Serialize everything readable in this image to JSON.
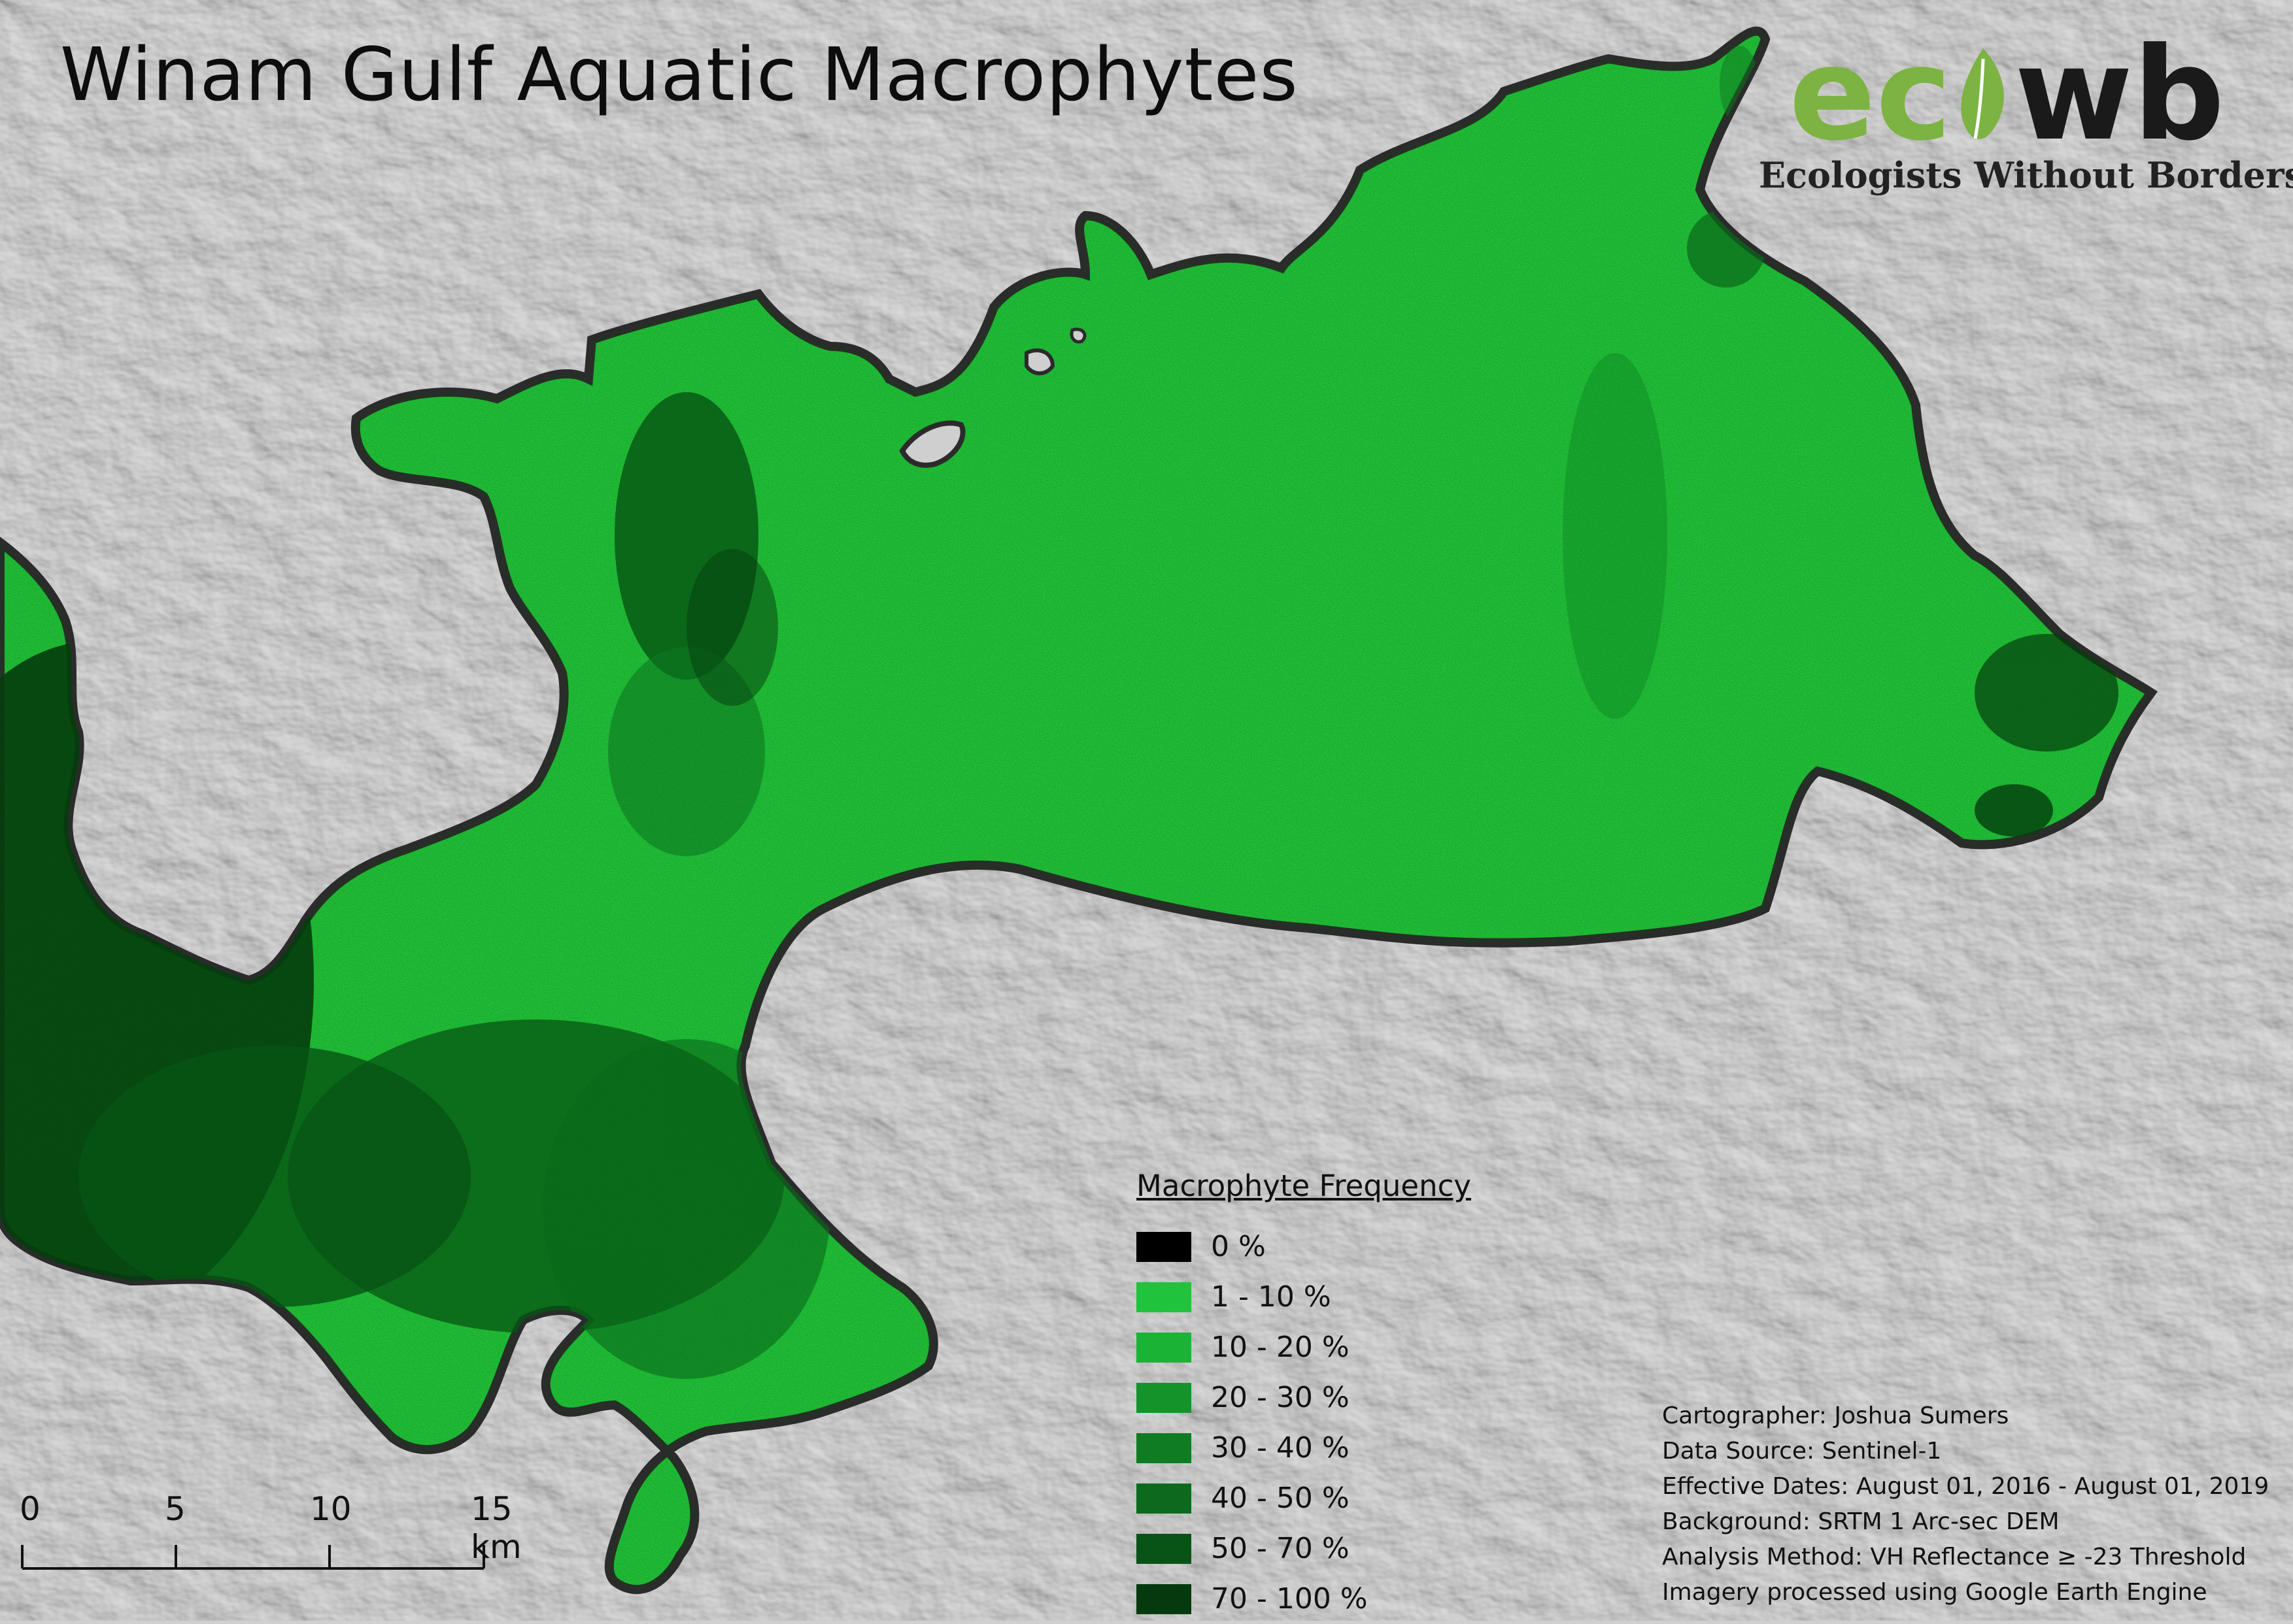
{
  "map": {
    "title": "Winam Gulf Aquatic Macrophytes",
    "background": "SRTM hillshade",
    "water_color": "#22c13a",
    "shore_color": "#2b2b2b"
  },
  "logo": {
    "word_left": "ec",
    "word_right": "wb",
    "tagline": "Ecologists Without Borders",
    "eco_color": "#7cb342",
    "leaf_color": "#7cb342"
  },
  "legend": {
    "title": "Macrophyte Frequency",
    "classes": [
      {
        "label": "0 %",
        "color": "#000000"
      },
      {
        "label": "1 - 10 %",
        "color": "#21c33c"
      },
      {
        "label": "10 - 20 %",
        "color": "#1bb335"
      },
      {
        "label": "20 - 30 %",
        "color": "#13932a"
      },
      {
        "label": "30 - 40 %",
        "color": "#0f7c24"
      },
      {
        "label": "40 - 50 %",
        "color": "#0b6a1e"
      },
      {
        "label": "50 - 70 %",
        "color": "#085417"
      },
      {
        "label": "70 - 100 %",
        "color": "#053a0f"
      }
    ]
  },
  "credits": {
    "cartographer": "Cartographer: Joshua Sumers",
    "data_source": "Data Source: Sentinel-1",
    "effective_dates": "Effective Dates: August 01, 2016 - August 01, 2019",
    "background": "Background: SRTM 1 Arc-sec DEM",
    "analysis_method": "Analysis Method: VH Reflectance  ≥ -23 Threshold",
    "processing": "Imagery processed using Google Earth Engine"
  },
  "scalebar": {
    "ticks": [
      "0",
      "5",
      "10",
      "15 km"
    ],
    "tick_values": [
      0,
      5,
      10,
      15
    ],
    "unit": "km"
  }
}
